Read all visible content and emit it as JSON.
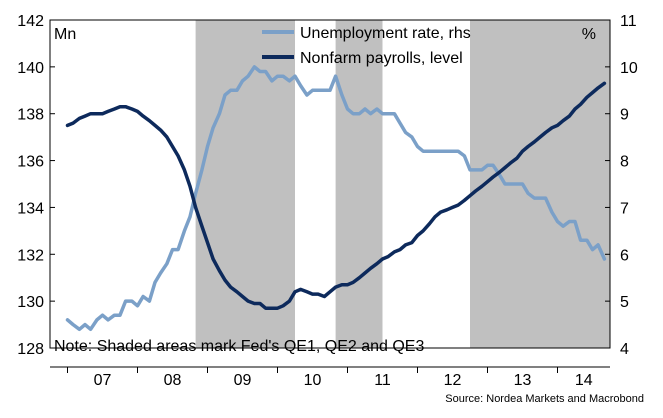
{
  "chart_data": {
    "type": "line",
    "left_unit": "Mn",
    "right_unit": "%",
    "note": "Note: Shaded areas mark Fed's QE1, QE2 and QE3",
    "source": "Source: Nordea Markets and Macrobond",
    "x_tick_labels": [
      "07",
      "08",
      "09",
      "10",
      "11",
      "12",
      "13",
      "14"
    ],
    "x_range": [
      2006.75,
      2014.75
    ],
    "y_left": {
      "range": [
        128,
        142
      ],
      "ticks": [
        128,
        130,
        132,
        134,
        136,
        138,
        140,
        142
      ]
    },
    "y_right": {
      "range": [
        4,
        11
      ],
      "ticks": [
        4,
        5,
        6,
        7,
        8,
        9,
        10,
        11
      ]
    },
    "legend_placement": "top-right",
    "grid": false,
    "shaded_periods": [
      {
        "start": 2008.83,
        "end": 2010.25
      },
      {
        "start": 2010.83,
        "end": 2011.5
      },
      {
        "start": 2012.75,
        "end": 2014.75
      }
    ],
    "series": [
      {
        "name": "Unemployment rate, rhs",
        "axis": "right",
        "color": "#7ba0c8",
        "x": [
          2007.0,
          2007.08,
          2007.17,
          2007.25,
          2007.33,
          2007.42,
          2007.5,
          2007.58,
          2007.67,
          2007.75,
          2007.83,
          2007.92,
          2008.0,
          2008.08,
          2008.17,
          2008.25,
          2008.33,
          2008.42,
          2008.5,
          2008.58,
          2008.67,
          2008.75,
          2008.83,
          2008.92,
          2009.0,
          2009.08,
          2009.17,
          2009.25,
          2009.33,
          2009.42,
          2009.5,
          2009.58,
          2009.67,
          2009.75,
          2009.83,
          2009.92,
          2010.0,
          2010.08,
          2010.17,
          2010.25,
          2010.33,
          2010.42,
          2010.5,
          2010.58,
          2010.67,
          2010.75,
          2010.83,
          2010.92,
          2011.0,
          2011.08,
          2011.17,
          2011.25,
          2011.33,
          2011.42,
          2011.5,
          2011.58,
          2011.67,
          2011.75,
          2011.83,
          2011.92,
          2012.0,
          2012.08,
          2012.17,
          2012.25,
          2012.33,
          2012.42,
          2012.5,
          2012.58,
          2012.67,
          2012.75,
          2012.83,
          2012.92,
          2013.0,
          2013.08,
          2013.17,
          2013.25,
          2013.33,
          2013.42,
          2013.5,
          2013.58,
          2013.67,
          2013.75,
          2013.83,
          2013.92,
          2014.0,
          2014.08,
          2014.17,
          2014.25,
          2014.33,
          2014.42,
          2014.5,
          2014.58,
          2014.67
        ],
        "values": [
          4.6,
          4.5,
          4.4,
          4.5,
          4.4,
          4.6,
          4.7,
          4.6,
          4.7,
          4.7,
          5.0,
          5.0,
          4.9,
          5.1,
          5.0,
          5.4,
          5.6,
          5.8,
          6.1,
          6.1,
          6.5,
          6.8,
          7.3,
          7.8,
          8.3,
          8.7,
          9.0,
          9.4,
          9.5,
          9.5,
          9.7,
          9.8,
          10.0,
          9.9,
          9.9,
          9.7,
          9.8,
          9.8,
          9.7,
          9.8,
          9.6,
          9.4,
          9.5,
          9.5,
          9.5,
          9.5,
          9.8,
          9.4,
          9.1,
          9.0,
          9.0,
          9.1,
          9.0,
          9.1,
          9.0,
          9.0,
          9.0,
          8.8,
          8.6,
          8.5,
          8.3,
          8.2,
          8.2,
          8.2,
          8.2,
          8.2,
          8.2,
          8.2,
          8.1,
          7.8,
          7.8,
          7.8,
          7.9,
          7.9,
          7.7,
          7.5,
          7.5,
          7.5,
          7.5,
          7.3,
          7.2,
          7.2,
          7.2,
          6.9,
          6.7,
          6.6,
          6.7,
          6.7,
          6.3,
          6.3,
          6.1,
          6.2,
          5.9
        ]
      },
      {
        "name": "Nonfarm payrolls, level",
        "axis": "left",
        "color": "#0d2a5c",
        "x": [
          2007.0,
          2007.08,
          2007.17,
          2007.25,
          2007.33,
          2007.42,
          2007.5,
          2007.58,
          2007.67,
          2007.75,
          2007.83,
          2007.92,
          2008.0,
          2008.08,
          2008.17,
          2008.25,
          2008.33,
          2008.42,
          2008.5,
          2008.58,
          2008.67,
          2008.75,
          2008.83,
          2008.92,
          2009.0,
          2009.08,
          2009.17,
          2009.25,
          2009.33,
          2009.42,
          2009.5,
          2009.58,
          2009.67,
          2009.75,
          2009.83,
          2009.92,
          2010.0,
          2010.08,
          2010.17,
          2010.25,
          2010.33,
          2010.42,
          2010.5,
          2010.58,
          2010.67,
          2010.75,
          2010.83,
          2010.92,
          2011.0,
          2011.08,
          2011.17,
          2011.25,
          2011.33,
          2011.42,
          2011.5,
          2011.58,
          2011.67,
          2011.75,
          2011.83,
          2011.92,
          2012.0,
          2012.08,
          2012.17,
          2012.25,
          2012.33,
          2012.42,
          2012.5,
          2012.58,
          2012.67,
          2012.75,
          2012.83,
          2012.92,
          2013.0,
          2013.08,
          2013.17,
          2013.25,
          2013.33,
          2013.42,
          2013.5,
          2013.58,
          2013.67,
          2013.75,
          2013.83,
          2013.92,
          2014.0,
          2014.08,
          2014.17,
          2014.25,
          2014.33,
          2014.42,
          2014.5,
          2014.58,
          2014.67
        ],
        "values": [
          137.5,
          137.6,
          137.8,
          137.9,
          138.0,
          138.0,
          138.0,
          138.1,
          138.2,
          138.3,
          138.3,
          138.2,
          138.1,
          137.9,
          137.7,
          137.5,
          137.3,
          137.0,
          136.6,
          136.2,
          135.6,
          134.9,
          134.0,
          133.2,
          132.5,
          131.8,
          131.3,
          130.9,
          130.6,
          130.4,
          130.2,
          130.0,
          129.9,
          129.9,
          129.7,
          129.7,
          129.7,
          129.8,
          130.0,
          130.4,
          130.5,
          130.4,
          130.3,
          130.3,
          130.2,
          130.4,
          130.6,
          130.7,
          130.7,
          130.8,
          131.0,
          131.2,
          131.4,
          131.6,
          131.8,
          131.9,
          132.1,
          132.2,
          132.4,
          132.5,
          132.8,
          133.0,
          133.3,
          133.6,
          133.8,
          133.9,
          134.0,
          134.1,
          134.3,
          134.5,
          134.7,
          134.9,
          135.1,
          135.3,
          135.5,
          135.7,
          135.9,
          136.1,
          136.4,
          136.6,
          136.8,
          137.0,
          137.2,
          137.4,
          137.5,
          137.7,
          137.9,
          138.2,
          138.4,
          138.7,
          138.9,
          139.1,
          139.3
        ]
      }
    ]
  }
}
